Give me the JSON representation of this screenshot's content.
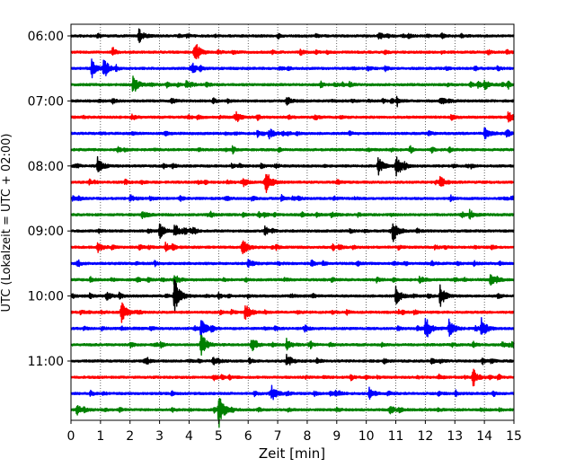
{
  "chart_data": {
    "type": "line",
    "title": "",
    "xlabel": "Zeit  [min]",
    "ylabel": "UTC (Lokalzeit = UTC + 02:00)",
    "xlim": [
      0,
      15
    ],
    "x_ticks": [
      0,
      1,
      2,
      3,
      4,
      5,
      6,
      7,
      8,
      9,
      10,
      11,
      12,
      13,
      14,
      15
    ],
    "y_tick_labels": [
      "06:00",
      "07:00",
      "08:00",
      "09:00",
      "10:00",
      "11:00"
    ],
    "grid": "vertical dotted lines at each minute",
    "trace_interval_minutes": 15,
    "colors": [
      "#000000",
      "#ff0000",
      "#0000ff",
      "#008000"
    ],
    "traces": [
      {
        "start": "05:45",
        "color": "#000000",
        "events": [
          [
            2.3,
            0.4
          ]
        ]
      },
      {
        "start": "06:00",
        "color": "#ff0000",
        "events": [
          [
            4.2,
            0.45
          ]
        ]
      },
      {
        "start": "06:15",
        "color": "#0000ff",
        "events": [
          [
            0.7,
            0.6
          ],
          [
            1.1,
            0.5
          ]
        ]
      },
      {
        "start": "06:30",
        "color": "#008000",
        "events": [
          [
            2.1,
            0.6
          ],
          [
            3.9,
            0.3
          ],
          [
            14.0,
            0.3
          ]
        ]
      },
      {
        "start": "06:45",
        "color": "#000000",
        "events": [
          [
            7.3,
            0.25
          ],
          [
            12.5,
            0.25
          ]
        ]
      },
      {
        "start": "07:00",
        "color": "#ff0000",
        "events": [
          [
            14.8,
            0.35
          ],
          [
            5.6,
            0.25
          ]
        ]
      },
      {
        "start": "07:15",
        "color": "#0000ff",
        "events": [
          [
            6.7,
            0.3
          ],
          [
            14.0,
            0.35
          ]
        ]
      },
      {
        "start": "07:30",
        "color": "#008000",
        "events": []
      },
      {
        "start": "07:45",
        "color": "#000000",
        "events": [
          [
            0.9,
            0.5
          ],
          [
            10.4,
            0.55
          ],
          [
            11.0,
            0.7
          ]
        ]
      },
      {
        "start": "08:00",
        "color": "#ff0000",
        "events": [
          [
            6.6,
            0.75
          ],
          [
            12.5,
            0.35
          ]
        ]
      },
      {
        "start": "08:15",
        "color": "#0000ff",
        "events": [
          [
            2.0,
            0.2
          ]
        ]
      },
      {
        "start": "08:30",
        "color": "#008000",
        "events": [
          [
            2.4,
            0.25
          ],
          [
            13.5,
            0.25
          ]
        ]
      },
      {
        "start": "08:45",
        "color": "#000000",
        "events": [
          [
            3.0,
            0.55
          ],
          [
            3.5,
            0.45
          ],
          [
            10.9,
            0.7
          ]
        ]
      },
      {
        "start": "09:00",
        "color": "#ff0000",
        "events": [
          [
            0.9,
            0.3
          ],
          [
            5.8,
            0.6
          ],
          [
            3.2,
            0.25
          ]
        ]
      },
      {
        "start": "09:15",
        "color": "#0000ff",
        "events": [
          [
            6.0,
            0.2
          ]
        ]
      },
      {
        "start": "09:30",
        "color": "#008000",
        "events": [
          [
            3.5,
            0.35
          ],
          [
            14.2,
            0.35
          ],
          [
            11.8,
            0.2
          ]
        ]
      },
      {
        "start": "09:45",
        "color": "#000000",
        "events": [
          [
            3.5,
            1.2
          ],
          [
            11.0,
            0.55
          ],
          [
            12.5,
            0.65
          ],
          [
            1.2,
            0.25
          ]
        ]
      },
      {
        "start": "10:00",
        "color": "#ff0000",
        "events": [
          [
            1.7,
            0.7
          ],
          [
            5.9,
            0.55
          ]
        ]
      },
      {
        "start": "10:15",
        "color": "#0000ff",
        "events": [
          [
            4.4,
            0.6
          ],
          [
            12.0,
            0.8
          ],
          [
            12.8,
            0.6
          ],
          [
            13.9,
            0.6
          ]
        ]
      },
      {
        "start": "10:30",
        "color": "#008000",
        "events": [
          [
            4.4,
            0.8
          ],
          [
            6.1,
            0.45
          ],
          [
            7.3,
            0.35
          ]
        ]
      },
      {
        "start": "10:45",
        "color": "#000000",
        "events": [
          [
            7.3,
            0.35
          ],
          [
            4.8,
            0.25
          ]
        ]
      },
      {
        "start": "11:00",
        "color": "#ff0000",
        "events": [
          [
            13.6,
            0.45
          ]
        ]
      },
      {
        "start": "11:15",
        "color": "#0000ff",
        "events": [
          [
            6.8,
            0.45
          ],
          [
            10.1,
            0.35
          ]
        ]
      },
      {
        "start": "11:30",
        "color": "#008000",
        "events": [
          [
            5.0,
            1.15
          ],
          [
            0.2,
            0.35
          ],
          [
            10.8,
            0.25
          ]
        ]
      }
    ]
  }
}
